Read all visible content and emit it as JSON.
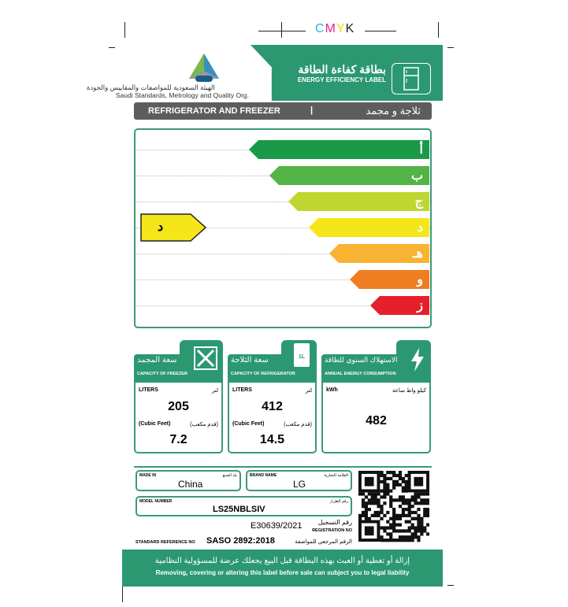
{
  "print_marks": {
    "cmyk": [
      "C",
      "M",
      "Y",
      "K"
    ]
  },
  "colors": {
    "brand_green": "#2b9872",
    "rating_colors": [
      "#1a9a48",
      "#52b447",
      "#bfd630",
      "#f5e61a",
      "#f7b331",
      "#ef7d22",
      "#e5202a"
    ]
  },
  "org": {
    "logo_text": "SASO",
    "name_ar": "الهيئة السعودية للمواصفات والمقاييس والجودة",
    "name_en": "Saudi Standards, Metrology and Quality Org."
  },
  "header": {
    "title_ar": "بطاقة كفاءة الطاقة",
    "title_en": "ENERGY EFFICIENCY LABEL",
    "icon": "fridge-icon"
  },
  "category": {
    "en": "REFRIGERATOR AND FREEZER",
    "sep": "|",
    "ar": "ثلاجة و مجمد"
  },
  "rating": {
    "classes": [
      "أ",
      "ب",
      "ج",
      "د",
      "هـ",
      "و",
      "ز"
    ],
    "current": "د",
    "current_index": 3
  },
  "capacities": [
    {
      "title_ar": "سعة المجمد",
      "title_en": "CAPACITY OF FREEZER",
      "icon": "expand-arrows-icon",
      "unit_en": "LITERS",
      "unit_ar": "لتر",
      "value": "205",
      "unit2_en": "(Cubic Feet)",
      "unit2_ar": "(قدم مكعب)",
      "value2": "7.2"
    },
    {
      "title_ar": "سعة الثلاجة",
      "title_en": "CAPACITY OF REFRIGERATOR",
      "icon": "milk-carton-icon",
      "icon_text": "1L",
      "unit_en": "LITERS",
      "unit_ar": "لتر",
      "value": "412",
      "unit2_en": "(Cubic Feet)",
      "unit2_ar": "(قدم مكعب)",
      "value2": "14.5"
    },
    {
      "title_ar": "الاستهلاك السنوي للطاقة",
      "title_en": "ANNUAL ENERGY CONSUMPTION",
      "icon": "lightning-icon",
      "unit_en": "kWh",
      "unit_ar": "كيلو واط ساعة",
      "value": "482"
    }
  ],
  "info": {
    "made_in_en": "MADE IN",
    "made_in_ar": "بلد الصنع",
    "made_in": "China",
    "brand_en": "BRAND NAME",
    "brand_ar": "العلامة التجارية",
    "brand": "LG",
    "model_en": "MODEL NUMBER",
    "model_ar": "رقم الطراز",
    "model": "LS25NBLSIV",
    "reg_no": "E30639/2021",
    "reg_ar": "رقم التسجيل",
    "reg_en": "REGISTRATION NO",
    "std_en": "STANDARD REFERENCE NO",
    "std": "SASO 2892:2018",
    "std_ar": "الرقم المرجعي للمواصفة"
  },
  "footer": {
    "ar": "إزالة أو تغطية أو العبث بهذه البطاقة قبل البيع يجعلك عرضة للمسؤولية النظامية",
    "en": "Removing, covering or altering this label before sale can subject you to legal liability"
  }
}
